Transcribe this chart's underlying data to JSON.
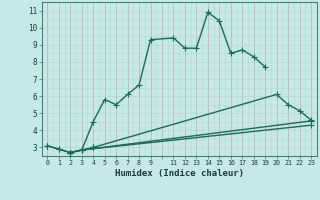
{
  "xlabel": "Humidex (Indice chaleur)",
  "xlim": [
    -0.5,
    23.5
  ],
  "ylim": [
    2.5,
    11.5
  ],
  "background_color": "#c5e8e8",
  "grid_color_major_x": "#c8a8a8",
  "grid_color_major_y": "#c8a8a8",
  "line_color": "#1a6b5a",
  "line_width": 1.0,
  "marker": "+",
  "marker_size": 4,
  "curve1_x": [
    0,
    1,
    2,
    3,
    4,
    5,
    6,
    7,
    8,
    9,
    11,
    12,
    13,
    14,
    15,
    16,
    17,
    18,
    19
  ],
  "curve1_y": [
    3.1,
    2.9,
    2.7,
    2.85,
    4.5,
    5.8,
    5.5,
    6.1,
    6.65,
    9.3,
    9.4,
    8.8,
    8.8,
    10.9,
    10.4,
    8.5,
    8.7,
    8.3,
    7.7
  ],
  "curve2_x": [
    0,
    1,
    2,
    3,
    4,
    20,
    21,
    22,
    23
  ],
  "curve2_y": [
    3.1,
    2.9,
    2.7,
    2.85,
    3.0,
    6.1,
    5.5,
    5.15,
    4.6
  ],
  "curve3_x": [
    2,
    3,
    23
  ],
  "curve3_y": [
    2.7,
    2.85,
    4.55
  ],
  "curve4_x": [
    2,
    3,
    23
  ],
  "curve4_y": [
    2.7,
    2.85,
    4.3
  ],
  "ytick_labels": [
    "3",
    "4",
    "5",
    "6",
    "7",
    "8",
    "9",
    "10",
    "11"
  ],
  "xtick_labels": [
    "0",
    "1",
    "2",
    "3",
    "4",
    "5",
    "6",
    "7",
    "8",
    "9",
    "",
    "11",
    "12",
    "13",
    "14",
    "15",
    "16",
    "17",
    "18",
    "19",
    "20",
    "21",
    "22",
    "23"
  ]
}
